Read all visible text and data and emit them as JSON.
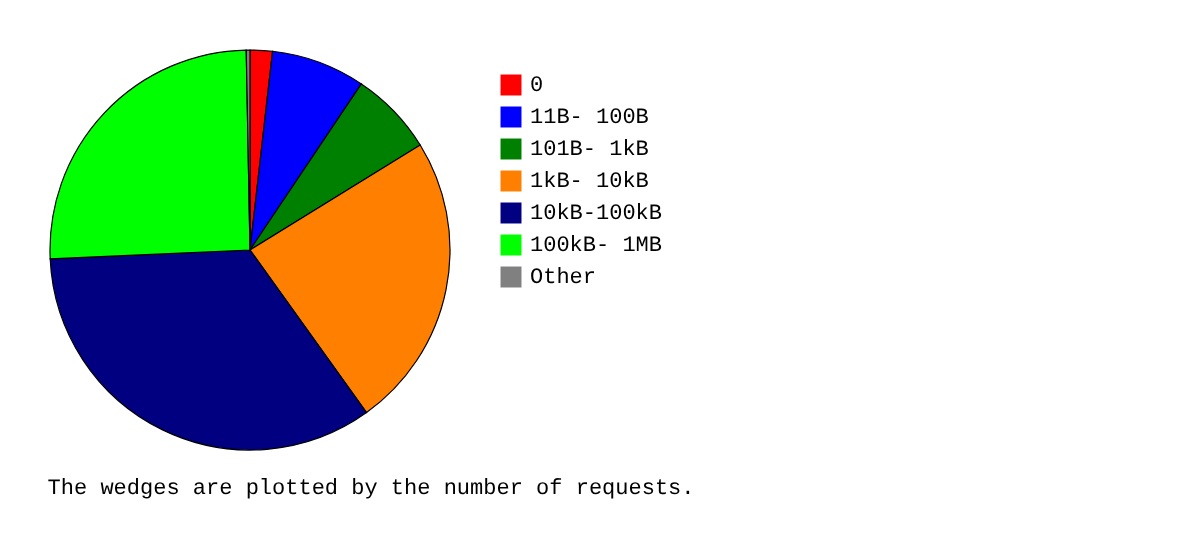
{
  "chart_data": {
    "type": "pie",
    "categories": [
      "0",
      "11B- 100B",
      "101B-  1kB",
      " 1kB- 10kB",
      "10kB-100kB",
      "100kB-  1MB",
      "Other"
    ],
    "values": [
      1.8,
      7.6,
      6.8,
      23.9,
      34.2,
      25.4,
      0.3
    ],
    "colors": [
      "#ff0000",
      "#0000ff",
      "#008000",
      "#ff8000",
      "#000080",
      "#00ff00",
      "#808080"
    ],
    "legend": "right",
    "annotations": [
      "The wedges are plotted by the number of requests."
    ]
  }
}
